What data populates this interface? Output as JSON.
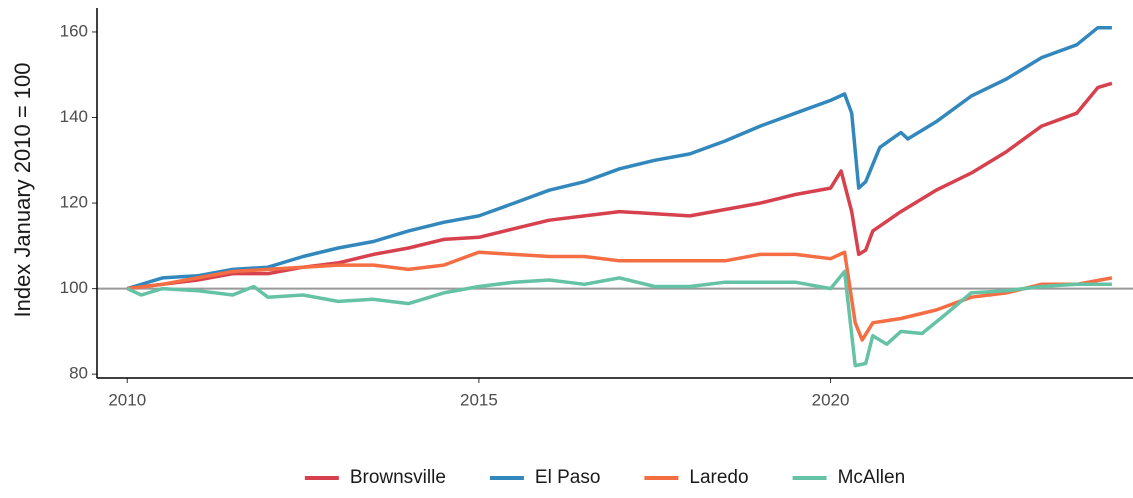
{
  "chart_data": {
    "type": "line",
    "y_label": "Index January 2010 = 100",
    "xlim": [
      2009.57,
      2024.3
    ],
    "xticks": [
      2010,
      2015,
      2020
    ],
    "ylim": [
      79.1,
      165.6
    ],
    "yticks": [
      80,
      100,
      120,
      140,
      160
    ],
    "reference_line": 100,
    "legend": "bottom",
    "series": [
      {
        "name": "Brownsville",
        "color": "#d7414e",
        "x": [
          2010,
          2010.5,
          2011,
          2011.5,
          2012,
          2012.5,
          2013,
          2013.5,
          2014,
          2014.5,
          2015,
          2015.5,
          2016,
          2016.5,
          2017,
          2017.5,
          2018,
          2018.5,
          2019,
          2019.5,
          2020,
          2020.15,
          2020.3,
          2020.4,
          2020.5,
          2020.6,
          2021,
          2021.5,
          2022,
          2022.5,
          2023,
          2023.5,
          2023.8,
          2024
        ],
        "values": [
          100,
          101,
          102,
          103.5,
          103.5,
          105,
          106,
          108,
          109.5,
          111.5,
          112,
          114,
          116,
          117,
          118,
          117.5,
          117,
          118.5,
          120,
          122,
          123.5,
          127.5,
          118,
          108,
          109,
          113.5,
          118,
          123,
          127,
          132,
          138,
          141,
          147,
          148
        ]
      },
      {
        "name": "El Paso",
        "color": "#3288bd",
        "x": [
          2010,
          2010.5,
          2011,
          2011.5,
          2012,
          2012.5,
          2013,
          2013.5,
          2014,
          2014.5,
          2015,
          2015.5,
          2016,
          2016.5,
          2017,
          2017.5,
          2018,
          2018.5,
          2019,
          2019.5,
          2020,
          2020.2,
          2020.3,
          2020.4,
          2020.5,
          2020.7,
          2021,
          2021.1,
          2021.5,
          2022,
          2022.5,
          2023,
          2023.5,
          2023.8,
          2024
        ],
        "values": [
          100,
          102.5,
          103,
          104.5,
          105,
          107.5,
          109.5,
          111,
          113.5,
          115.5,
          117,
          120,
          123,
          125,
          128,
          130,
          131.5,
          134.5,
          138,
          141,
          144,
          145.5,
          141,
          123.5,
          125,
          133,
          136.5,
          135,
          139,
          145,
          149,
          154,
          157,
          161,
          161
        ]
      },
      {
        "name": "Laredo",
        "color": "#f46d43",
        "x": [
          2010,
          2010.5,
          2011,
          2011.5,
          2012,
          2012.5,
          2013,
          2013.5,
          2014,
          2014.5,
          2015,
          2015.5,
          2016,
          2016.5,
          2017,
          2017.5,
          2018,
          2018.5,
          2019,
          2019.5,
          2020,
          2020.2,
          2020.35,
          2020.45,
          2020.6,
          2021,
          2021.5,
          2022,
          2022.5,
          2023,
          2023.5,
          2024
        ],
        "values": [
          100,
          101,
          102.5,
          104,
          104.5,
          105,
          105.5,
          105.5,
          104.5,
          105.5,
          108.5,
          108,
          107.5,
          107.5,
          106.5,
          106.5,
          106.5,
          106.5,
          108,
          108,
          107,
          108.5,
          92,
          88,
          92,
          93,
          95,
          98,
          99,
          101,
          101,
          102.5
        ]
      },
      {
        "name": "McAllen",
        "color": "#66c2a5",
        "x": [
          2010,
          2010.2,
          2010.5,
          2011,
          2011.5,
          2011.8,
          2012,
          2012.5,
          2013,
          2013.5,
          2014,
          2014.5,
          2015,
          2015.5,
          2016,
          2016.5,
          2017,
          2017.5,
          2018,
          2018.5,
          2019,
          2019.5,
          2020,
          2020.2,
          2020.35,
          2020.5,
          2020.6,
          2020.8,
          2021,
          2021.3,
          2021.6,
          2022,
          2022.5,
          2023,
          2023.5,
          2024
        ],
        "values": [
          100,
          98.5,
          100,
          99.5,
          98.5,
          100.5,
          98,
          98.5,
          97,
          97.5,
          96.5,
          99,
          100.5,
          101.5,
          102,
          101,
          102.5,
          100.5,
          100.5,
          101.5,
          101.5,
          101.5,
          100,
          104,
          82,
          82.5,
          89,
          87,
          90,
          89.5,
          93.5,
          99,
          99.5,
          100.5,
          101,
          101
        ]
      }
    ]
  }
}
